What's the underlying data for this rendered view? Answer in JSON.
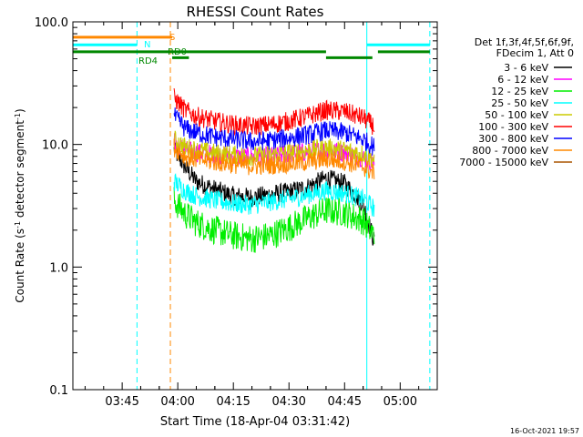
{
  "chart_data": {
    "type": "line",
    "title": "RHESSI Count Rates",
    "xlabel": "Start Time (18-Apr-04 03:31:42)",
    "ylabel": "Count Rate (s⁻¹ detector segment⁻¹)",
    "ylabel_parts": [
      "Count Rate (s",
      "-1",
      " detector segment",
      "-1",
      ")"
    ],
    "y_scale": "log",
    "ylim": [
      0.1,
      100
    ],
    "xlim": [
      "03:31:42",
      "05:10:00"
    ],
    "x_ticks": [
      "03:45",
      "04:00",
      "04:15",
      "04:30",
      "04:45",
      "05:00"
    ],
    "y_ticks": [
      "0.1",
      "1.0",
      "10.0",
      "100.0"
    ],
    "footer_timestamp": "16-Oct-2021 19:57",
    "legend_position": "right",
    "legend_header": [
      "Det 1f,3f,4f,5f,6f,9f,",
      "FDecim 1, Att 0"
    ],
    "x": [
      "03:59",
      "04:02",
      "04:05",
      "04:10",
      "04:15",
      "04:20",
      "04:25",
      "04:30",
      "04:35",
      "04:40",
      "04:45",
      "04:50",
      "04:53"
    ],
    "series": [
      {
        "name": "3 - 6 keV",
        "color": "#000000",
        "values": [
          9,
          6.5,
          5,
          4.3,
          3.8,
          3.7,
          3.9,
          4.1,
          4.5,
          5.3,
          4.8,
          3.3,
          1.6
        ]
      },
      {
        "name": "6 - 12 keV",
        "color": "#ff00ff",
        "values": [
          10.5,
          9,
          8.6,
          8.3,
          8,
          7.9,
          8,
          8.4,
          8.7,
          9,
          8.6,
          7.8,
          7
        ]
      },
      {
        "name": "12 - 25 keV",
        "color": "#00ee00",
        "values": [
          3.5,
          2.7,
          2.3,
          2,
          1.8,
          1.7,
          1.8,
          2.1,
          2.5,
          2.9,
          2.8,
          2.4,
          1.8
        ]
      },
      {
        "name": "25 - 50 keV",
        "color": "#00ffff",
        "values": [
          5,
          4.2,
          3.8,
          3.5,
          3.3,
          3.2,
          3.4,
          3.6,
          3.9,
          4.2,
          4,
          3.6,
          3
        ]
      },
      {
        "name": "50 - 100 keV",
        "color": "#cccc00",
        "values": [
          11,
          9.5,
          9,
          8.5,
          8.2,
          8,
          8.2,
          8.6,
          9,
          9.4,
          9,
          8.4,
          7.5
        ]
      },
      {
        "name": "100 - 300 keV",
        "color": "#ff0000",
        "values": [
          24,
          19,
          17,
          15.5,
          14.5,
          14,
          14.5,
          15.5,
          17,
          19,
          18.5,
          16.5,
          14
        ]
      },
      {
        "name": "300 - 800 keV",
        "color": "#0000ff",
        "values": [
          17,
          13.5,
          12.5,
          11.5,
          11,
          10.5,
          10.8,
          11.3,
          12,
          13,
          12.5,
          11,
          9.5
        ]
      },
      {
        "name": "800 - 7000 keV",
        "color": "#ff8800",
        "values": [
          9.5,
          8,
          7.6,
          7.2,
          6.9,
          6.7,
          6.8,
          7,
          7.2,
          7.6,
          7.3,
          6.6,
          5.8
        ]
      },
      {
        "name": "7000 - 15000 keV",
        "color": "#aa5500",
        "values": [
          null,
          null,
          null,
          null,
          null,
          null,
          null,
          null,
          null,
          null,
          null,
          null,
          null
        ]
      }
    ],
    "annotation_bars": [
      {
        "label": "S",
        "color": "#ff8800",
        "segments": [
          [
            "03:31:42",
            "03:58:30"
          ]
        ],
        "y": 75
      },
      {
        "label": "N",
        "color": "#00ffff",
        "segments": [
          [
            "03:31:42",
            "03:49:00"
          ],
          [
            "04:51:00",
            "05:08:00"
          ]
        ],
        "y": 65
      },
      {
        "label": "RD0",
        "color": "#008800",
        "segments": [
          [
            "03:31:42",
            "04:40:00"
          ],
          [
            "04:54:00",
            "05:08:00"
          ]
        ],
        "y": 57
      },
      {
        "label": "RD4",
        "color": "#008800",
        "segments": [
          [
            "03:58:30",
            "04:03:00"
          ],
          [
            "04:40:00",
            "04:52:30"
          ]
        ],
        "y": 51
      }
    ],
    "vertical_lines": [
      {
        "time": "03:31:42",
        "color": "#00ffff",
        "style": "solid"
      },
      {
        "time": "03:49:00",
        "color": "#00ffff",
        "style": "dashed"
      },
      {
        "time": "03:58:00",
        "color": "#ff8800",
        "style": "dashed"
      },
      {
        "time": "04:51:00",
        "color": "#00ffff",
        "style": "solid"
      },
      {
        "time": "05:08:00",
        "color": "#00ffff",
        "style": "dashed"
      }
    ]
  }
}
